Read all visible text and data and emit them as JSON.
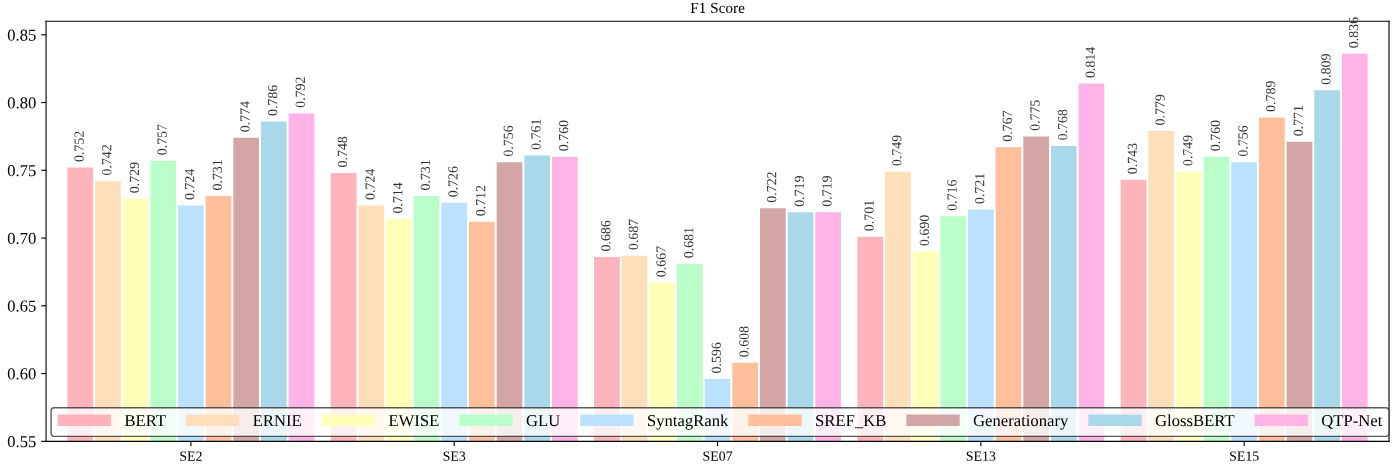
{
  "chart_data": {
    "type": "bar",
    "title": "F1 Score",
    "categories": [
      "SE2",
      "SE3",
      "SE07",
      "SE13",
      "SE15"
    ],
    "series": [
      {
        "name": "BERT",
        "color": "#ffb3ba",
        "values": [
          0.752,
          0.748,
          0.686,
          0.701,
          0.743
        ],
        "value_labels": [
          "0.752",
          "0.748",
          "0.686",
          "0.701",
          "0.743"
        ]
      },
      {
        "name": "ERNIE",
        "color": "#ffdfba",
        "values": [
          0.742,
          0.724,
          0.687,
          0.749,
          0.779
        ],
        "value_labels": [
          "0.742",
          "0.724",
          "0.687",
          "0.749",
          "0.779"
        ]
      },
      {
        "name": "EWISE",
        "color": "#ffffba",
        "values": [
          0.729,
          0.714,
          0.667,
          0.69,
          0.749
        ],
        "value_labels": [
          "0.729",
          "0.714",
          "0.667",
          "0.690",
          "0.749"
        ]
      },
      {
        "name": "GLU",
        "color": "#baffc9",
        "values": [
          0.757,
          0.731,
          0.681,
          0.716,
          0.76
        ],
        "value_labels": [
          "0.757",
          "0.731",
          "0.681",
          "0.716",
          "0.760"
        ]
      },
      {
        "name": "SyntagRank",
        "color": "#bae1ff",
        "values": [
          0.724,
          0.726,
          0.596,
          0.721,
          0.756
        ],
        "value_labels": [
          "0.724",
          "0.726",
          "0.596",
          "0.721",
          "0.756"
        ]
      },
      {
        "name": "SREF_KB",
        "color": "#ffbf9a",
        "values": [
          0.731,
          0.712,
          0.608,
          0.767,
          0.789
        ],
        "value_labels": [
          "0.731",
          "0.712",
          "0.608",
          "0.767",
          "0.789"
        ]
      },
      {
        "name": "Generationary",
        "color": "#d4a5a5",
        "values": [
          0.774,
          0.756,
          0.722,
          0.775,
          0.771
        ],
        "value_labels": [
          "0.774",
          "0.756",
          "0.722",
          "0.775",
          "0.771"
        ]
      },
      {
        "name": "GlossBERT",
        "color": "#a8d8ea",
        "values": [
          0.786,
          0.761,
          0.719,
          0.768,
          0.809
        ],
        "value_labels": [
          "0.786",
          "0.761",
          "0.719",
          "0.768",
          "0.809"
        ]
      },
      {
        "name": "QTP-Net",
        "color": "#ffb3e6",
        "values": [
          0.792,
          0.76,
          0.719,
          0.814,
          0.836
        ],
        "value_labels": [
          "0.792",
          "0.760",
          "0.719",
          "0.814",
          "0.836"
        ]
      }
    ],
    "ylim": [
      0.55,
      0.86
    ],
    "yticks": [
      "0.55",
      "0.60",
      "0.65",
      "0.70",
      "0.75",
      "0.80",
      "0.85"
    ],
    "grid": false,
    "legend": "bottom left"
  }
}
